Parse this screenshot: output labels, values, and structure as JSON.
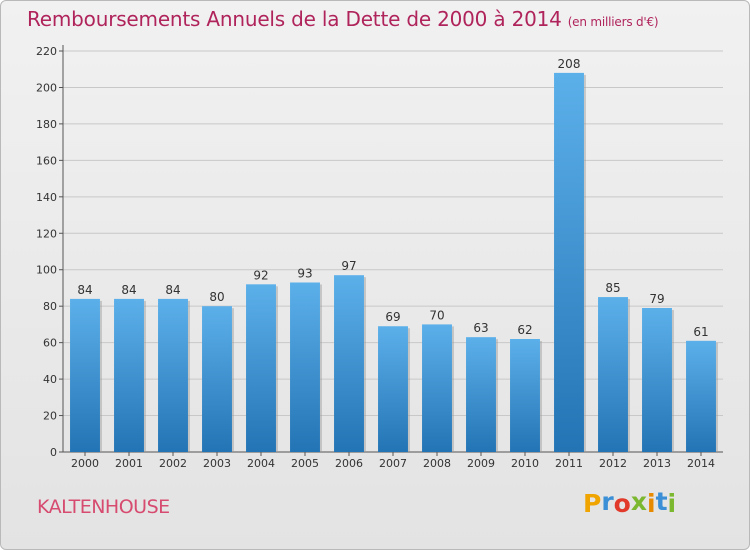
{
  "header": {
    "title": "Remboursements Annuels de la Dette de 2000 à 2014",
    "unit": "(en milliers d'€)"
  },
  "footer": {
    "city": "KALTENHOUSE",
    "logo_letters": [
      "P",
      "r",
      "o",
      "x",
      "i",
      "t",
      "i"
    ],
    "logo_colors": [
      "#f0a400",
      "#3a8fd6",
      "#e23a2a",
      "#7cb82f",
      "#e88a00",
      "#3a8fd6",
      "#7cb82f"
    ]
  },
  "colors": {
    "bar_top": "#5cb0ea",
    "bar_bottom": "#2374b4",
    "grid": "#c8c8c8",
    "axis": "#555555"
  },
  "chart_data": {
    "type": "bar",
    "title": "Remboursements Annuels de la Dette de 2000 à 2014",
    "ylabel": "en milliers d'€",
    "xlabel": "",
    "categories": [
      "2000",
      "2001",
      "2002",
      "2003",
      "2004",
      "2005",
      "2006",
      "2007",
      "2008",
      "2009",
      "2010",
      "2011",
      "2012",
      "2013",
      "2014"
    ],
    "values": [
      84,
      84,
      84,
      80,
      92,
      93,
      97,
      69,
      70,
      63,
      62,
      208,
      85,
      79,
      61
    ],
    "ylim": [
      0,
      220
    ],
    "yticks": [
      0,
      20,
      40,
      60,
      80,
      100,
      120,
      140,
      160,
      180,
      200,
      220
    ],
    "grid": true
  }
}
